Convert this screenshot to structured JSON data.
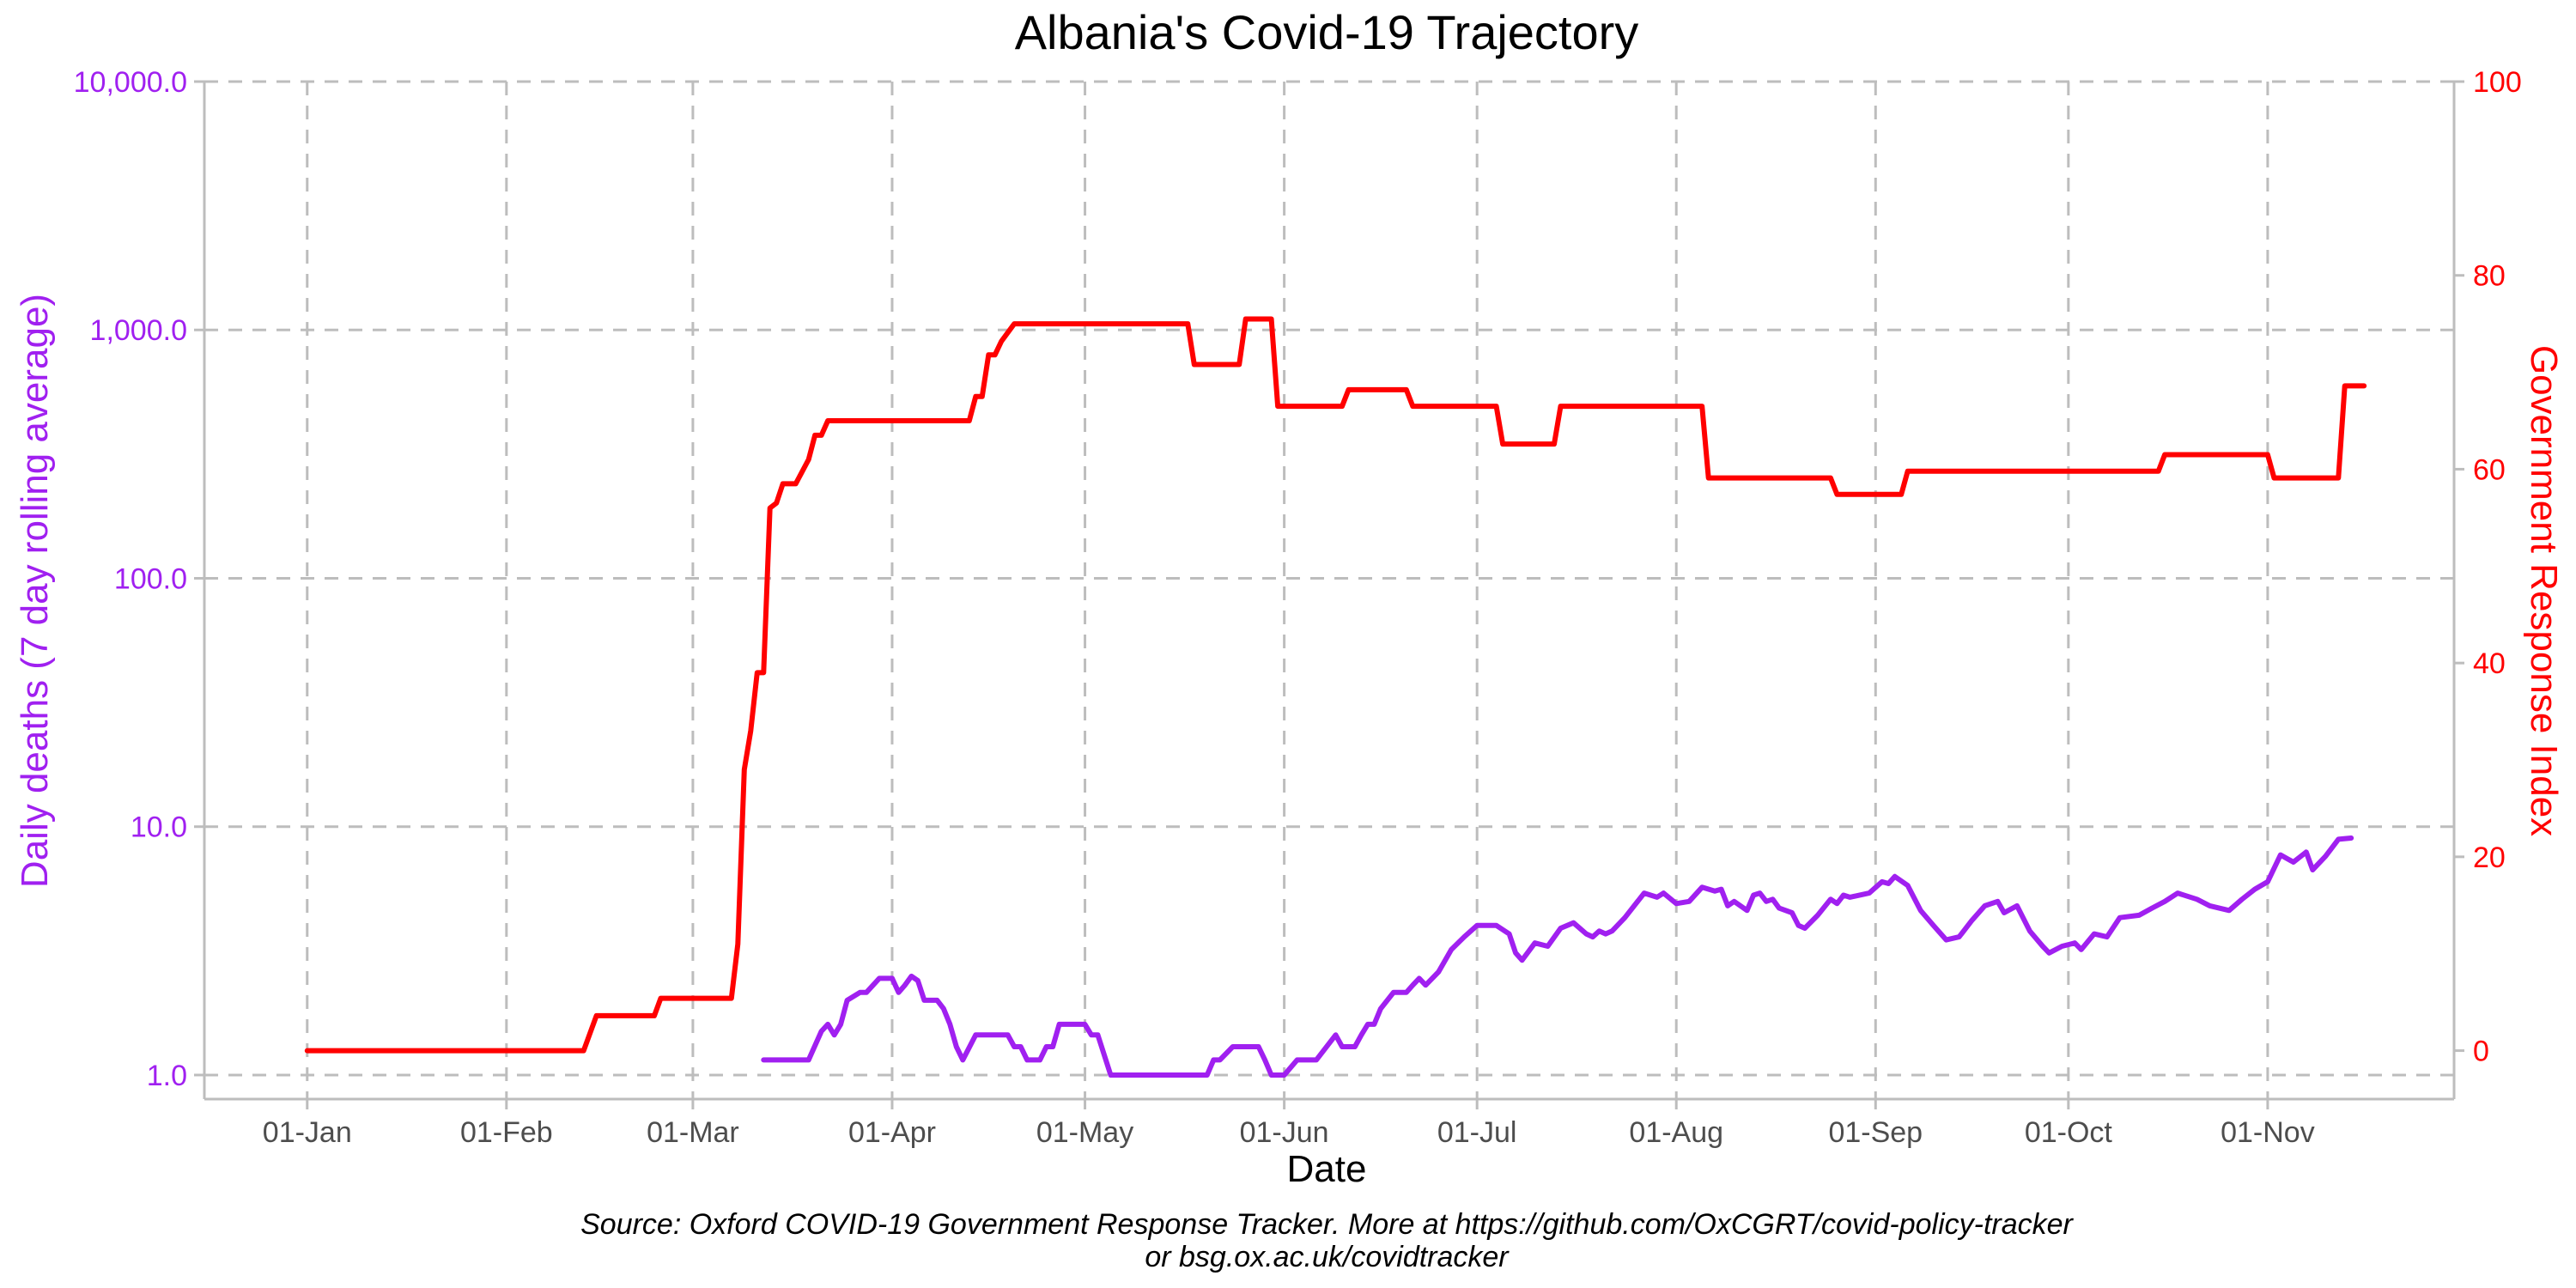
{
  "chart_data": {
    "type": "line",
    "title": "Albania's Covid-19 Trajectory",
    "xlabel": "Date",
    "caption_line1": "Source: Oxford COVID-19 Government Response Tracker. More at https://github.com/OxCGRT/covid-policy-tracker",
    "caption_line2": "or bsg.ox.ac.uk/covidtracker",
    "x_tick_labels": [
      "01-Jan",
      "01-Feb",
      "01-Mar",
      "01-Apr",
      "01-May",
      "01-Jun",
      "01-Jul",
      "01-Aug",
      "01-Sep",
      "01-Oct",
      "01-Nov"
    ],
    "x_tick_dates": [
      "2020-01-01",
      "2020-02-01",
      "2020-03-01",
      "2020-04-01",
      "2020-05-01",
      "2020-06-01",
      "2020-07-01",
      "2020-08-01",
      "2020-09-01",
      "2020-10-01",
      "2020-11-01"
    ],
    "xlim": [
      "2019-12-16",
      "2020-11-30"
    ],
    "grid": true,
    "y_left": {
      "label": "Daily deaths (7 day rolling average)",
      "scale": "log",
      "ticks": [
        1,
        10,
        100,
        1000,
        10000
      ],
      "tick_labels": [
        "1.0",
        "10.0",
        "100.0",
        "1,000.0",
        "10,000.0"
      ],
      "ylim": [
        0.8,
        10000
      ],
      "color": "#a020f0"
    },
    "y_right": {
      "label": "Government Response Index",
      "scale": "linear",
      "ticks": [
        0,
        20,
        40,
        60,
        80,
        100
      ],
      "tick_labels": [
        "0",
        "20",
        "40",
        "60",
        "80",
        "100"
      ],
      "ylim": [
        -5,
        100
      ],
      "color": "#ff0000"
    },
    "series": [
      {
        "axis": "right",
        "color": "#ff0000",
        "type": "step",
        "points": [
          [
            "2020-01-01",
            0
          ],
          [
            "2020-02-13",
            0
          ],
          [
            "2020-02-15",
            3.6
          ],
          [
            "2020-02-24",
            3.6
          ],
          [
            "2020-02-25",
            5.4
          ],
          [
            "2020-03-07",
            5.4
          ],
          [
            "2020-03-08",
            11
          ],
          [
            "2020-03-09",
            29
          ],
          [
            "2020-03-10",
            33
          ],
          [
            "2020-03-11",
            39
          ],
          [
            "2020-03-12",
            39
          ],
          [
            "2020-03-13",
            56
          ],
          [
            "2020-03-14",
            56.5
          ],
          [
            "2020-03-15",
            58.5
          ],
          [
            "2020-03-17",
            58.5
          ],
          [
            "2020-03-19",
            61
          ],
          [
            "2020-03-20",
            63.5
          ],
          [
            "2020-03-21",
            63.5
          ],
          [
            "2020-03-22",
            65
          ],
          [
            "2020-04-13",
            65
          ],
          [
            "2020-04-14",
            67.5
          ],
          [
            "2020-04-15",
            67.5
          ],
          [
            "2020-04-16",
            71.8
          ],
          [
            "2020-04-17",
            71.8
          ],
          [
            "2020-04-18",
            73.2
          ],
          [
            "2020-04-20",
            75
          ],
          [
            "2020-05-17",
            75
          ],
          [
            "2020-05-18",
            70.8
          ],
          [
            "2020-05-25",
            70.8
          ],
          [
            "2020-05-26",
            75.5
          ],
          [
            "2020-05-30",
            75.5
          ],
          [
            "2020-05-31",
            66.5
          ],
          [
            "2020-06-10",
            66.5
          ],
          [
            "2020-06-11",
            68.2
          ],
          [
            "2020-06-20",
            68.2
          ],
          [
            "2020-06-21",
            66.5
          ],
          [
            "2020-07-04",
            66.5
          ],
          [
            "2020-07-05",
            62.6
          ],
          [
            "2020-07-13",
            62.6
          ],
          [
            "2020-07-14",
            66.5
          ],
          [
            "2020-08-05",
            66.5
          ],
          [
            "2020-08-06",
            59.1
          ],
          [
            "2020-08-25",
            59.1
          ],
          [
            "2020-08-26",
            57.4
          ],
          [
            "2020-09-05",
            57.4
          ],
          [
            "2020-09-06",
            59.8
          ],
          [
            "2020-10-15",
            59.8
          ],
          [
            "2020-10-16",
            61.5
          ],
          [
            "2020-11-01",
            61.5
          ],
          [
            "2020-11-02",
            59.1
          ],
          [
            "2020-11-12",
            59.1
          ],
          [
            "2020-11-13",
            68.6
          ],
          [
            "2020-11-16",
            68.6
          ]
        ]
      },
      {
        "axis": "left",
        "color": "#a020f0",
        "type": "line",
        "points": [
          [
            "2020-03-12",
            1.15
          ],
          [
            "2020-03-19",
            1.15
          ],
          [
            "2020-03-21",
            1.5
          ],
          [
            "2020-03-22",
            1.6
          ],
          [
            "2020-03-23",
            1.45
          ],
          [
            "2020-03-24",
            1.6
          ],
          [
            "2020-03-25",
            2.0
          ],
          [
            "2020-03-27",
            2.15
          ],
          [
            "2020-03-28",
            2.15
          ],
          [
            "2020-03-30",
            2.45
          ],
          [
            "2020-04-01",
            2.45
          ],
          [
            "2020-04-02",
            2.15
          ],
          [
            "2020-04-03",
            2.3
          ],
          [
            "2020-04-04",
            2.5
          ],
          [
            "2020-04-05",
            2.4
          ],
          [
            "2020-04-06",
            2.0
          ],
          [
            "2020-04-08",
            2.0
          ],
          [
            "2020-04-09",
            1.85
          ],
          [
            "2020-04-10",
            1.6
          ],
          [
            "2020-04-11",
            1.3
          ],
          [
            "2020-04-12",
            1.15
          ],
          [
            "2020-04-14",
            1.45
          ],
          [
            "2020-04-15",
            1.45
          ],
          [
            "2020-04-19",
            1.45
          ],
          [
            "2020-04-20",
            1.3
          ],
          [
            "2020-04-21",
            1.3
          ],
          [
            "2020-04-22",
            1.15
          ],
          [
            "2020-04-23",
            1.15
          ],
          [
            "2020-04-24",
            1.15
          ],
          [
            "2020-04-25",
            1.3
          ],
          [
            "2020-04-26",
            1.3
          ],
          [
            "2020-04-27",
            1.6
          ],
          [
            "2020-05-01",
            1.6
          ],
          [
            "2020-05-02",
            1.45
          ],
          [
            "2020-05-03",
            1.45
          ],
          [
            "2020-05-05",
            1.0
          ],
          [
            "2020-05-20",
            1.0
          ],
          [
            "2020-05-21",
            1.15
          ],
          [
            "2020-05-22",
            1.15
          ],
          [
            "2020-05-24",
            1.3
          ],
          [
            "2020-05-28",
            1.3
          ],
          [
            "2020-05-29",
            1.15
          ],
          [
            "2020-05-30",
            1.0
          ],
          [
            "2020-06-01",
            1.0
          ],
          [
            "2020-06-03",
            1.15
          ],
          [
            "2020-06-06",
            1.15
          ],
          [
            "2020-06-09",
            1.45
          ],
          [
            "2020-06-10",
            1.3
          ],
          [
            "2020-06-12",
            1.3
          ],
          [
            "2020-06-13",
            1.45
          ],
          [
            "2020-06-14",
            1.6
          ],
          [
            "2020-06-15",
            1.6
          ],
          [
            "2020-06-16",
            1.85
          ],
          [
            "2020-06-18",
            2.15
          ],
          [
            "2020-06-20",
            2.15
          ],
          [
            "2020-06-21",
            2.3
          ],
          [
            "2020-06-22",
            2.45
          ],
          [
            "2020-06-23",
            2.3
          ],
          [
            "2020-06-25",
            2.6
          ],
          [
            "2020-06-27",
            3.2
          ],
          [
            "2020-06-29",
            3.6
          ],
          [
            "2020-07-01",
            4.0
          ],
          [
            "2020-07-04",
            4.0
          ],
          [
            "2020-07-06",
            3.7
          ],
          [
            "2020-07-07",
            3.1
          ],
          [
            "2020-07-08",
            2.9
          ],
          [
            "2020-07-10",
            3.4
          ],
          [
            "2020-07-12",
            3.3
          ],
          [
            "2020-07-14",
            3.9
          ],
          [
            "2020-07-16",
            4.1
          ],
          [
            "2020-07-18",
            3.7
          ],
          [
            "2020-07-19",
            3.6
          ],
          [
            "2020-07-20",
            3.8
          ],
          [
            "2020-07-21",
            3.7
          ],
          [
            "2020-07-22",
            3.8
          ],
          [
            "2020-07-24",
            4.3
          ],
          [
            "2020-07-27",
            5.4
          ],
          [
            "2020-07-29",
            5.2
          ],
          [
            "2020-07-30",
            5.4
          ],
          [
            "2020-08-01",
            4.9
          ],
          [
            "2020-08-03",
            5.0
          ],
          [
            "2020-08-05",
            5.7
          ],
          [
            "2020-08-07",
            5.5
          ],
          [
            "2020-08-08",
            5.6
          ],
          [
            "2020-08-09",
            4.8
          ],
          [
            "2020-08-10",
            5.0
          ],
          [
            "2020-08-12",
            4.6
          ],
          [
            "2020-08-13",
            5.3
          ],
          [
            "2020-08-14",
            5.4
          ],
          [
            "2020-08-15",
            5.0
          ],
          [
            "2020-08-16",
            5.1
          ],
          [
            "2020-08-17",
            4.7
          ],
          [
            "2020-08-19",
            4.5
          ],
          [
            "2020-08-20",
            4.0
          ],
          [
            "2020-08-21",
            3.9
          ],
          [
            "2020-08-23",
            4.4
          ],
          [
            "2020-08-25",
            5.1
          ],
          [
            "2020-08-26",
            4.9
          ],
          [
            "2020-08-27",
            5.3
          ],
          [
            "2020-08-28",
            5.2
          ],
          [
            "2020-08-31",
            5.4
          ],
          [
            "2020-09-02",
            6.0
          ],
          [
            "2020-09-03",
            5.9
          ],
          [
            "2020-09-04",
            6.3
          ],
          [
            "2020-09-06",
            5.8
          ],
          [
            "2020-09-08",
            4.6
          ],
          [
            "2020-09-10",
            4.0
          ],
          [
            "2020-09-12",
            3.5
          ],
          [
            "2020-09-14",
            3.6
          ],
          [
            "2020-09-16",
            4.2
          ],
          [
            "2020-09-18",
            4.8
          ],
          [
            "2020-09-20",
            5.0
          ],
          [
            "2020-09-21",
            4.5
          ],
          [
            "2020-09-23",
            4.8
          ],
          [
            "2020-09-25",
            3.8
          ],
          [
            "2020-09-27",
            3.3
          ],
          [
            "2020-09-28",
            3.1
          ],
          [
            "2020-09-30",
            3.3
          ],
          [
            "2020-10-02",
            3.4
          ],
          [
            "2020-10-03",
            3.2
          ],
          [
            "2020-10-05",
            3.7
          ],
          [
            "2020-10-07",
            3.6
          ],
          [
            "2020-10-09",
            4.3
          ],
          [
            "2020-10-12",
            4.4
          ],
          [
            "2020-10-14",
            4.7
          ],
          [
            "2020-10-16",
            5.0
          ],
          [
            "2020-10-18",
            5.4
          ],
          [
            "2020-10-21",
            5.1
          ],
          [
            "2020-10-23",
            4.8
          ],
          [
            "2020-10-26",
            4.6
          ],
          [
            "2020-10-28",
            5.1
          ],
          [
            "2020-10-30",
            5.6
          ],
          [
            "2020-11-01",
            6.0
          ],
          [
            "2020-11-03",
            7.7
          ],
          [
            "2020-11-05",
            7.2
          ],
          [
            "2020-11-07",
            7.9
          ],
          [
            "2020-11-08",
            6.7
          ],
          [
            "2020-11-10",
            7.6
          ],
          [
            "2020-11-12",
            8.9
          ],
          [
            "2020-11-14",
            9.0
          ]
        ]
      }
    ]
  }
}
